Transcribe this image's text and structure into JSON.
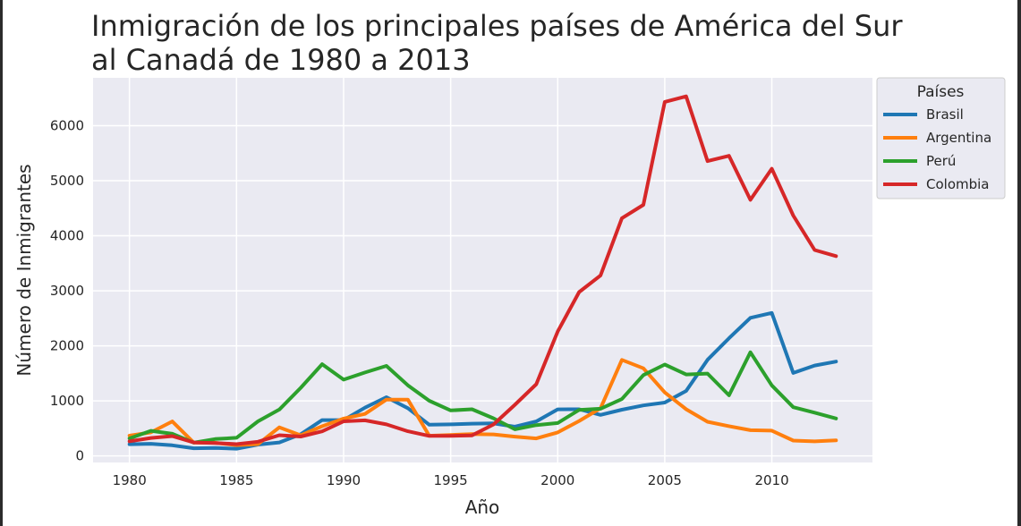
{
  "chart_data": {
    "type": "line",
    "title_lines": [
      "Inmigración de los principales países de América del Sur",
      "al Canadá de 1980 a 2013"
    ],
    "xlabel": "Año",
    "ylabel": "Número de Inmigrantes",
    "xlim": [
      1978.3,
      2014.7
    ],
    "ylim": [
      -120,
      6870
    ],
    "xticks": [
      1980,
      1985,
      1990,
      1995,
      2000,
      2005,
      2010
    ],
    "yticks": [
      0,
      1000,
      2000,
      3000,
      4000,
      5000,
      6000
    ],
    "grid": true,
    "legend": {
      "title": "Países",
      "placement": "outside-top-right"
    },
    "x": [
      1980,
      1981,
      1982,
      1983,
      1984,
      1985,
      1986,
      1987,
      1988,
      1989,
      1990,
      1991,
      1992,
      1993,
      1994,
      1995,
      1996,
      1997,
      1998,
      1999,
      2000,
      2001,
      2002,
      2003,
      2004,
      2005,
      2006,
      2007,
      2008,
      2009,
      2010,
      2011,
      2012,
      2013
    ],
    "series": [
      {
        "name": "Brasil",
        "color": "#1f77b4",
        "values": [
          211,
          220,
          192,
          139,
          145,
          130,
          205,
          244,
          394,
          650,
          650,
          877,
          1066,
          866,
          566,
          572,
          586,
          591,
          531,
          626,
          845,
          847,
          745,
          839,
          917,
          969,
          1181,
          1746,
          2138,
          2509,
          2598,
          1508,
          1642,
          1714
        ]
      },
      {
        "name": "Argentina",
        "color": "#ff7f0e",
        "values": [
          368,
          426,
          626,
          241,
          237,
          196,
          213,
          519,
          374,
          538,
          678,
          763,
          1023,
          1022,
          366,
          380,
          396,
          391,
          349,
          318,
          427,
          635,
          865,
          1745,
          1591,
          1153,
          847,
          620,
          540,
          467,
          459,
          278,
          263,
          282
        ]
      },
      {
        "name": "Perú",
        "color": "#2ca02c",
        "values": [
          317,
          456,
          401,
          241,
          306,
          328,
          628,
          843,
          1237,
          1667,
          1385,
          1515,
          1636,
          1283,
          1002,
          826,
          847,
          683,
          483,
          560,
          597,
          836,
          857,
          1033,
          1469,
          1660,
          1479,
          1496,
          1101,
          1883,
          1282,
          884,
          785,
          680
        ]
      },
      {
        "name": "Colombia",
        "color": "#d62728",
        "values": [
          266,
          326,
          360,
          244,
          235,
          214,
          257,
          376,
          352,
          445,
          627,
          646,
          572,
          448,
          362,
          365,
          373,
          571,
          929,
          1302,
          2259,
          2976,
          3279,
          4320,
          4561,
          6432,
          6534,
          5356,
          5452,
          4652,
          5218,
          4366,
          3741,
          3631
        ]
      }
    ]
  }
}
